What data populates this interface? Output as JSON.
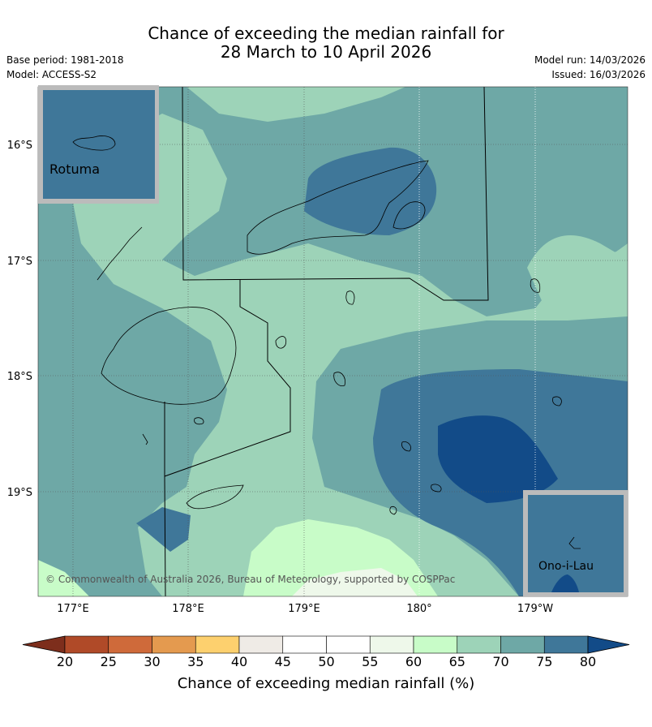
{
  "title_line1": "Chance of exceeding the median rainfall for",
  "title_line2": "28 March to 10 April 2026",
  "meta_left": [
    "Base period: 1981-2018",
    "Model: ACCESS-S2"
  ],
  "meta_right": [
    "Model run: 14/03/2026",
    "Issued: 16/03/2026"
  ],
  "lat_labels": [
    "16°S",
    "17°S",
    "18°S",
    "19°S"
  ],
  "lon_labels": [
    "177°E",
    "178°E",
    "179°E",
    "180°",
    "179°W"
  ],
  "insets": {
    "rotuma": "Rotuma",
    "ono_i_lau": "Ono-i-Lau"
  },
  "copyright": "© Commonwealth of Australia 2026, Bureau of Meteorology, supported by COSPPac",
  "colorbar": {
    "ticks": [
      "20",
      "25",
      "30",
      "35",
      "40",
      "45",
      "50",
      "55",
      "60",
      "65",
      "70",
      "75",
      "80"
    ],
    "label": "Chance of exceeding median rainfall (%)",
    "colors": [
      "#b04a28",
      "#cf6a3a",
      "#e49a4f",
      "#fdd06e",
      "#efebe6",
      "#ffffff",
      "#ffffff",
      "#eef8ea",
      "#c8fcc8",
      "#9dd3b8",
      "#6ea8a6",
      "#3f7799"
    ],
    "under_color": "#7d2e1c",
    "over_color": "#124b88"
  },
  "map_colors": {
    "c65": "#9dd3b8",
    "c70": "#6ea8a6",
    "c75": "#3f7799",
    "c80": "#124b88",
    "c60": "#c8fcc8",
    "c55": "#eef8ea"
  }
}
